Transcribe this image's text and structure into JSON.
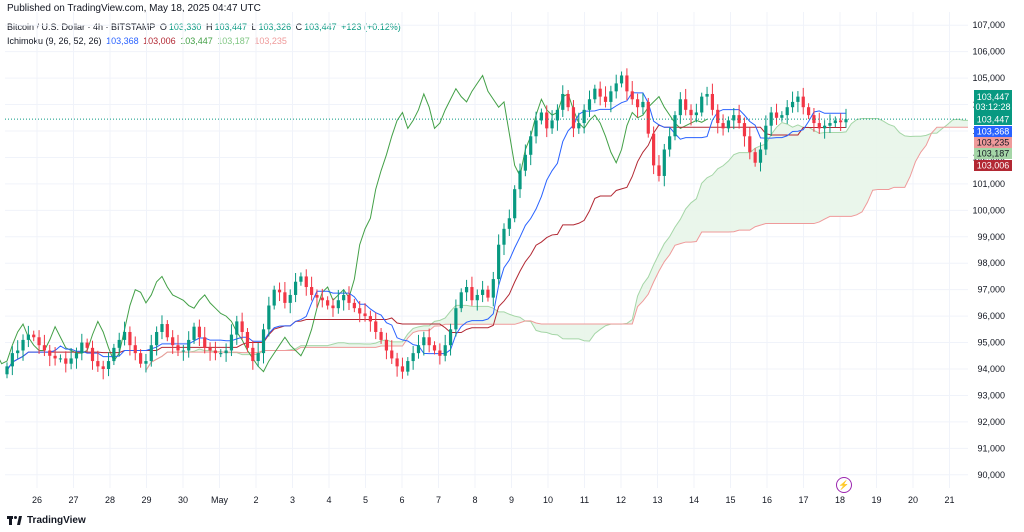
{
  "published": "Published on TradingView.com, May 18, 2025 04:47 UTC",
  "header": {
    "symbol": "Bitcoin / U.S. Dollar · 4h · BITSTAMP",
    "open_label": "O",
    "open": "103,330",
    "high_label": "H",
    "high": "103,447",
    "low_label": "L",
    "low": "103,326",
    "close_label": "C",
    "close": "103,447",
    "change": "+123 (+0.12%)",
    "indicator": "Ichimoku (9, 26, 52, 26)",
    "ind_values": [
      "103,368",
      "103,006",
      "103,447",
      "103,187",
      "103,235"
    ]
  },
  "brand": "TradingView",
  "colors": {
    "up": "#089981",
    "down": "#f23645",
    "conversion": "#2962ff",
    "base": "#b22833",
    "lagging": "#43a047",
    "spanA": "#a5d6a7",
    "spanB": "#ef9a9a",
    "cloud_up": "#e8f5e9",
    "cloud_down": "#fce4e4"
  },
  "chart_data": {
    "type": "candlestick",
    "interval": "4h",
    "ylim": [
      89500,
      107500
    ],
    "y_ticks": [
      "90,000",
      "91,000",
      "92,000",
      "93,000",
      "94,000",
      "95,000",
      "96,000",
      "97,000",
      "98,000",
      "99,000",
      "100,000",
      "101,000",
      "102,000",
      "103,000",
      "104,000",
      "105,000",
      "106,000",
      "107,000"
    ],
    "x_ticks": [
      "26",
      "27",
      "28",
      "29",
      "30",
      "May",
      "2",
      "3",
      "4",
      "5",
      "6",
      "7",
      "8",
      "9",
      "10",
      "11",
      "12",
      "13",
      "14",
      "15",
      "16",
      "17",
      "18",
      "19",
      "20",
      "21"
    ],
    "candles_close": [
      94100,
      94600,
      94700,
      95100,
      95300,
      95200,
      94900,
      94700,
      94500,
      94400,
      94400,
      94200,
      94400,
      94600,
      95000,
      94800,
      94300,
      94100,
      94000,
      94300,
      94800,
      95100,
      95400,
      94900,
      94600,
      94200,
      94300,
      94900,
      95400,
      95700,
      95200,
      94900,
      94700,
      94700,
      95100,
      95600,
      95200,
      94800,
      94700,
      94600,
      94600,
      94700,
      95300,
      95800,
      95400,
      94800,
      94300,
      94600,
      95500,
      96400,
      97000,
      96900,
      96500,
      96800,
      97300,
      97500,
      97100,
      96800,
      96700,
      96600,
      96400,
      96300,
      96600,
      96800,
      96500,
      96300,
      96100,
      96000,
      95800,
      95400,
      95100,
      94700,
      94400,
      94100,
      93900,
      94300,
      94600,
      94900,
      95200,
      94900,
      94700,
      94500,
      94900,
      95500,
      96300,
      96900,
      97100,
      96600,
      96800,
      97000,
      96700,
      97400,
      98700,
      99300,
      99700,
      100800,
      101500,
      102100,
      102800,
      103400,
      103700,
      103100,
      103400,
      103800,
      104400,
      103900,
      103100,
      103300,
      103800,
      104200,
      104600,
      104300,
      104100,
      104500,
      104800,
      105100,
      104500,
      104200,
      103900,
      104100,
      102900,
      101700,
      101300,
      102300,
      102800,
      103600,
      104200,
      103800,
      103600,
      103700,
      104300,
      104400,
      103800,
      103300,
      103100,
      103400,
      103600,
      103300,
      102800,
      102200,
      101800,
      102300,
      103200,
      103700,
      103500,
      103600,
      103900,
      104100,
      104300,
      103900,
      103600,
      103300,
      103100,
      103200,
      103300,
      103400,
      103330,
      103447
    ],
    "last_price": "103,447",
    "countdown": "03:12:28",
    "price_labels": [
      "103,447",
      "103,368",
      "103,235",
      "103,187",
      "103,006"
    ]
  }
}
